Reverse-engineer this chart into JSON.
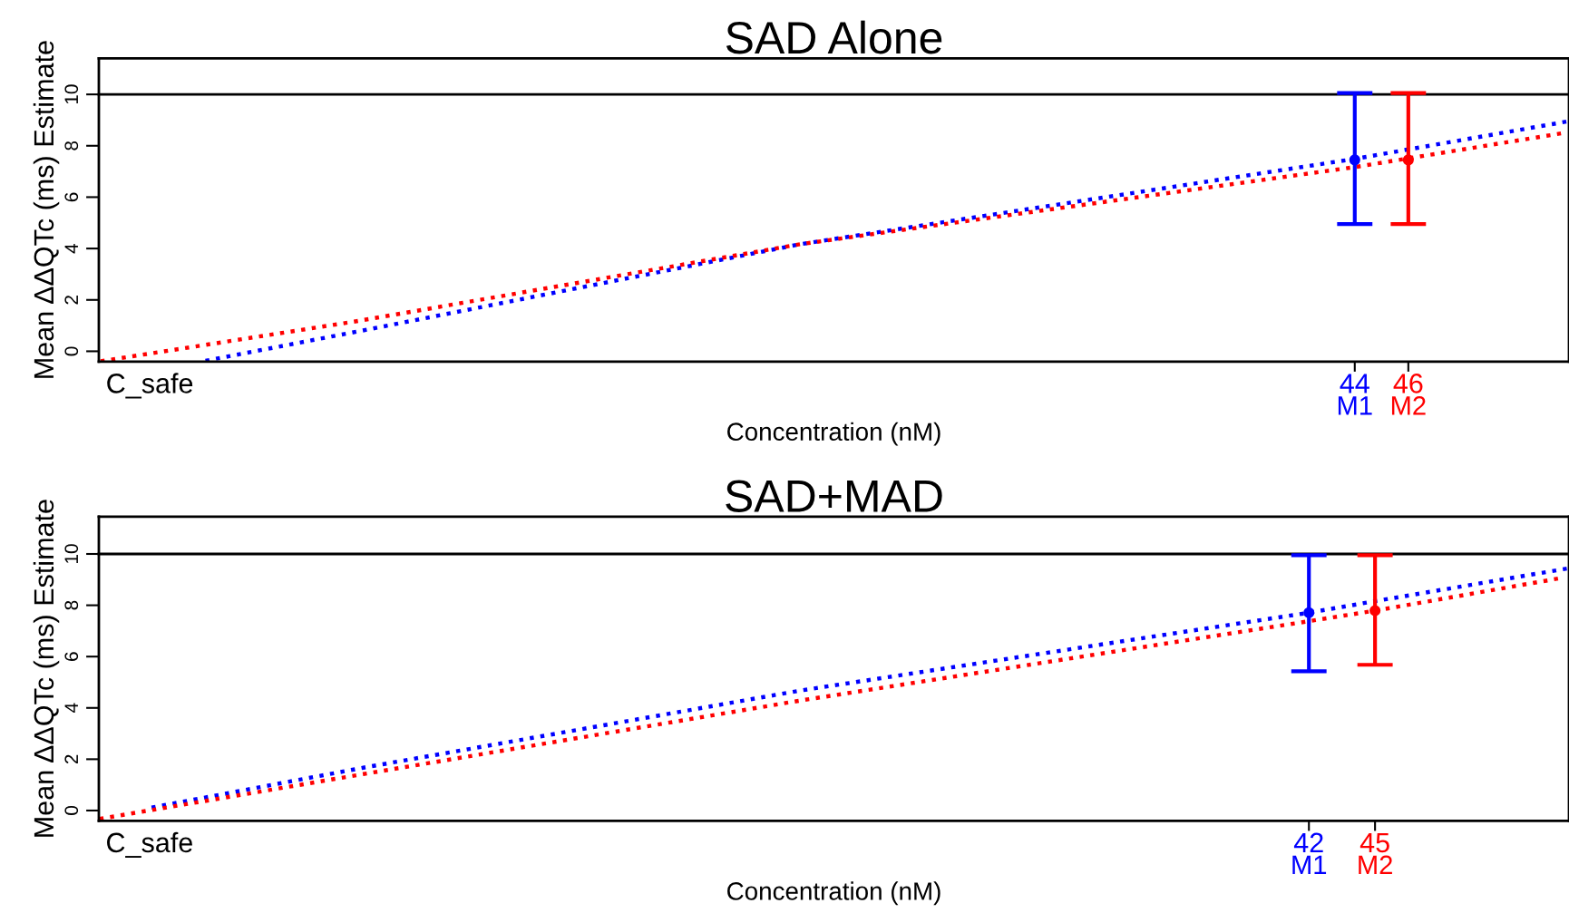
{
  "chart_data": [
    {
      "type": "line",
      "title": "SAD Alone",
      "xlabel": "Concentration (nM)",
      "ylabel": "Mean ΔΔQTc (ms) Estimate",
      "xlim": [
        -2.9,
        52
      ],
      "ylim": [
        -0.4,
        11.4
      ],
      "yticks": [
        0,
        2,
        4,
        6,
        8,
        10
      ],
      "xticks": [
        {
          "value": -1.0,
          "label": "C_safe"
        },
        44,
        46
      ],
      "line_style": "dotted",
      "grid": false,
      "legend": false,
      "ref_lines": [
        {
          "axis": "y",
          "value": 10,
          "color": "#000000"
        }
      ],
      "series": [
        {
          "color": "#0000ff",
          "x": [
            0.93,
            6.96,
            23.3,
            44,
            51.9
          ],
          "values": [
            -0.4,
            0.81,
            4.17,
            7.49,
            8.94
          ]
        },
        {
          "color": "#ff0000",
          "x": [
            -2.9,
            6.73,
            23.3,
            44,
            51.7
          ],
          "values": [
            -0.4,
            1.17,
            4.17,
            7.17,
            8.48
          ]
        },
        {
          "type": "scatter",
          "name": "M1",
          "color": "#0000ff",
          "x": [
            44
          ],
          "values": [
            7.45
          ],
          "errors": [
            [
              4.95,
              10.05
            ]
          ]
        },
        {
          "type": "scatter",
          "name": "M2",
          "color": "#ff0000",
          "x": [
            46
          ],
          "values": [
            7.45
          ],
          "errors": [
            [
              4.95,
              10.05
            ]
          ]
        }
      ]
    },
    {
      "type": "line",
      "title": "SAD+MAD",
      "xlabel": "Concentration (nM)",
      "ylabel": "Mean ΔΔQTc (ms) Estimate",
      "xlim": [
        -12.9,
        53.8
      ],
      "ylim": [
        -0.4,
        11.45
      ],
      "yticks": [
        0,
        2,
        4,
        6,
        8,
        10
      ],
      "xticks": [
        {
          "value": -10.6,
          "label": "C_safe"
        },
        42,
        45
      ],
      "line_style": "dotted",
      "grid": false,
      "legend": false,
      "ref_lines": [
        {
          "axis": "y",
          "value": 10,
          "color": "#000000"
        }
      ],
      "series": [
        {
          "color": "#0000ff",
          "x": [
            -10.6,
            -0.9,
            18.95,
            42,
            45,
            53.7
          ],
          "values": [
            0.1,
            1.67,
            4.68,
            7.71,
            8.16,
            9.43
          ]
        },
        {
          "color": "#ff0000",
          "x": [
            -12.9,
            -0.9,
            18.95,
            42,
            45,
            53.3
          ],
          "values": [
            -0.33,
            1.42,
            4.29,
            7.38,
            7.79,
            9.04
          ]
        },
        {
          "type": "scatter",
          "name": "M1",
          "color": "#0000ff",
          "x": [
            42
          ],
          "values": [
            7.71
          ],
          "errors": [
            [
              5.43,
              9.95
            ]
          ]
        },
        {
          "type": "scatter",
          "name": "M2",
          "color": "#ff0000",
          "x": [
            45
          ],
          "values": [
            7.79
          ],
          "errors": [
            [
              5.68,
              9.95
            ]
          ]
        }
      ]
    }
  ]
}
